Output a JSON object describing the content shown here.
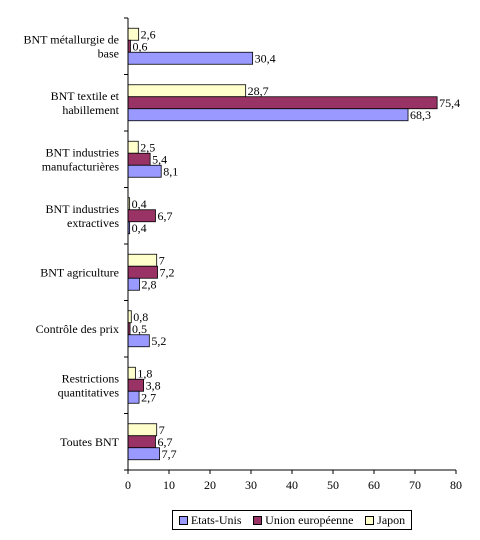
{
  "chart_data": {
    "type": "bar",
    "orientation": "horizontal",
    "categories": [
      [
        "BNT métallurgie de",
        "base"
      ],
      [
        "BNT textile et",
        "habillement"
      ],
      [
        "BNT industries",
        "manufacturières"
      ],
      [
        "BNT industries",
        "extractives"
      ],
      [
        "BNT agriculture"
      ],
      [
        "Contrôle des prix"
      ],
      [
        "Restrictions",
        "quantitatives"
      ],
      [
        "Toutes BNT"
      ]
    ],
    "series": [
      {
        "name": "Japon",
        "color": "#ffffcc",
        "values": [
          2.6,
          28.7,
          2.5,
          0.4,
          7,
          0.8,
          1.8,
          7
        ]
      },
      {
        "name": "Union européenne",
        "color": "#993366",
        "values": [
          0.6,
          75.4,
          5.4,
          6.7,
          7.2,
          0.5,
          3.8,
          6.7
        ]
      },
      {
        "name": "Etats-Unis",
        "color": "#9999ff",
        "values": [
          30.4,
          68.3,
          8.1,
          0.4,
          2.8,
          5.2,
          2.7,
          7.7
        ]
      }
    ],
    "data_labels": [
      [
        "2,6",
        "28,7",
        "2,5",
        "0,4",
        "7",
        "0,8",
        "1,8",
        "7"
      ],
      [
        "0,6",
        "75,4",
        "5,4",
        "6,7",
        "7,2",
        "0,5",
        "3,8",
        "6,7"
      ],
      [
        "30,4",
        "68,3",
        "8,1",
        "0,4",
        "2,8",
        "5,2",
        "2,7",
        "7,7"
      ]
    ],
    "xlim": [
      0,
      80
    ],
    "xticks": [
      0,
      10,
      20,
      30,
      40,
      50,
      60,
      70,
      80
    ],
    "grid": false,
    "legend": {
      "placement": "bottom",
      "order": [
        "Etats-Unis",
        "Union européenne",
        "Japon"
      ]
    }
  }
}
